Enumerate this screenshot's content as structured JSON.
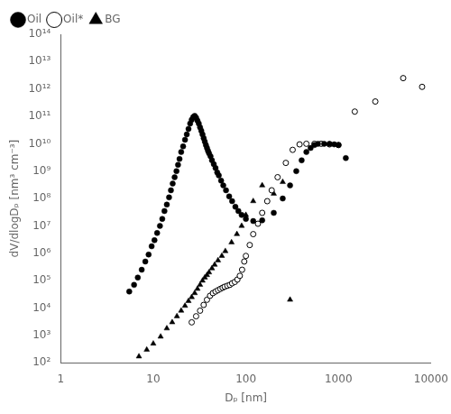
{
  "chart_data": {
    "type": "scatter",
    "xlabel": "Dₚ [nm]",
    "ylabel": "dV/dlogDₚ [nm³ cm⁻³]",
    "log": true,
    "grid": false,
    "legend": "upper left",
    "xlim": [
      1,
      10000
    ],
    "ylim": [
      100.0,
      100000000000000.0
    ],
    "xticks": [
      1,
      10,
      100,
      1000,
      10000
    ],
    "yticks": [
      {
        "value": 100.0,
        "label": "10²"
      },
      {
        "value": 1000.0,
        "label": "10³"
      },
      {
        "value": 10000.0,
        "label": "10⁴"
      },
      {
        "value": 100000.0,
        "label": "10⁵"
      },
      {
        "value": 1000000.0,
        "label": "10⁶"
      },
      {
        "value": 10000000.0,
        "label": "10⁷"
      },
      {
        "value": 100000000.0,
        "label": "10⁸"
      },
      {
        "value": 1000000000.0,
        "label": "10⁹"
      },
      {
        "value": 10000000000.0,
        "label": "10¹⁰"
      },
      {
        "value": 100000000000.0,
        "label": "10¹¹"
      },
      {
        "value": 1000000000000.0,
        "label": "10¹²"
      },
      {
        "value": 10000000000000.0,
        "label": "10¹³"
      },
      {
        "value": 100000000000000.0,
        "label": "10¹⁴"
      }
    ],
    "series": [
      {
        "name": "Oil",
        "color": "#000000",
        "marker": "circle",
        "x": [
          5.5,
          6.2,
          6.8,
          7.5,
          8.2,
          8.9,
          9.6,
          10.3,
          11.0,
          11.8,
          12.5,
          13.2,
          14.0,
          14.8,
          15.5,
          16.2,
          17.0,
          17.8,
          18.5,
          19.2,
          20.0,
          21.0,
          22.0,
          23.0,
          24.0,
          25.0,
          26.0,
          27.0,
          28.0,
          29.0,
          30.0,
          31.0,
          32.0,
          33.0,
          34.0,
          35.0,
          36.0,
          37.0,
          38.0,
          39.0,
          40.0,
          41.5,
          43.0,
          45.0,
          47.0,
          49.0,
          51.0,
          54.0,
          57.0,
          61.0,
          66.0,
          71.0,
          77.0,
          83.0,
          90.0,
          100.0,
          120.0,
          150.0,
          200.0,
          250.0,
          300.0,
          350.0,
          400.0,
          450.0,
          500.0,
          550.0,
          600.0,
          700.0,
          800.0,
          900.0,
          1000.0,
          1200.0
        ],
        "values": [
          40000.0,
          70000.0,
          130000.0,
          250000.0,
          500000.0,
          900000.0,
          1800000.0,
          3000000.0,
          5500000.0,
          10000000.0,
          18000000.0,
          35000000.0,
          60000000.0,
          110000000.0,
          200000000.0,
          350000000.0,
          600000000.0,
          1000000000.0,
          1700000000.0,
          2800000000.0,
          5000000000.0,
          8000000000.0,
          14000000000.0,
          22000000000.0,
          35000000000.0,
          55000000000.0,
          75000000000.0,
          95000000000.0,
          105000000000.0,
          90000000000.0,
          70000000000.0,
          55000000000.0,
          40000000000.0,
          30000000000.0,
          22000000000.0,
          16000000000.0,
          12000000000.0,
          9000000000.0,
          7000000000.0,
          5500000000.0,
          4500000000.0,
          3500000000.0,
          2500000000.0,
          1800000000.0,
          1300000000.0,
          900000000.0,
          700000000.0,
          450000000.0,
          300000000.0,
          200000000.0,
          120000000.0,
          80000000.0,
          50000000.0,
          35000000.0,
          25000000.0,
          18000000.0,
          15000000.0,
          16000000.0,
          30000000.0,
          100000000.0,
          300000000.0,
          1000000000.0,
          2500000000.0,
          5000000000.0,
          7000000000.0,
          9000000000.0,
          10000000000.0,
          10000000000.0,
          10000000000.0,
          9500000000.0,
          9000000000.0,
          3000000000.0
        ]
      },
      {
        "name": "Oil*",
        "color": "#000000",
        "marker": "open_circle",
        "x": [
          26.0,
          29.0,
          32.0,
          35.0,
          38.0,
          41.0,
          44.0,
          47.0,
          50.0,
          53.0,
          56.0,
          59.0,
          63.0,
          67.0,
          71.0,
          76.0,
          81.0,
          86.0,
          91.0,
          96.0,
          100.0,
          110.0,
          120.0,
          135.0,
          150.0,
          170.0,
          190.0,
          220.0,
          270.0,
          320.0,
          380.0,
          450.0,
          550.0,
          650.0,
          800.0,
          1000.0,
          1500.0,
          2500.0,
          5000.0,
          8000.0
        ],
        "values": [
          3000.0,
          5000.0,
          8000.0,
          13000.0,
          20000.0,
          28000.0,
          35000.0,
          40000.0,
          45000.0,
          50000.0,
          55000.0,
          60000.0,
          65000.0,
          70000.0,
          80000.0,
          90000.0,
          110000.0,
          150000.0,
          250000.0,
          500000.0,
          800000.0,
          2000000.0,
          5000000.0,
          12000000.0,
          30000000.0,
          80000000.0,
          200000000.0,
          600000000.0,
          2000000000.0,
          6000000000.0,
          9500000000.0,
          10000000000.0,
          10000000000.0,
          10000000000.0,
          9500000000.0,
          9000000000.0,
          150000000000.0,
          350000000000.0,
          2500000000000.0,
          1200000000000.0
        ]
      },
      {
        "name": "BG",
        "color": "#000000",
        "marker": "triangle",
        "x": [
          7.0,
          8.5,
          10.0,
          12.0,
          14.0,
          16.0,
          18.0,
          20.0,
          22.0,
          24.0,
          26.0,
          28.0,
          30.0,
          32.0,
          34.0,
          36.0,
          38.0,
          40.0,
          43.0,
          46.0,
          50.0,
          55.0,
          60.0,
          70.0,
          80.0,
          90.0,
          100.0,
          120.0,
          150.0,
          200.0,
          250.0,
          300.0
        ],
        "values": [
          170.0,
          300.0,
          500.0,
          900.0,
          1800.0,
          3000.0,
          5000.0,
          8000.0,
          12000.0,
          18000.0,
          25000.0,
          35000.0,
          50000.0,
          70000.0,
          100000.0,
          130000.0,
          160000.0,
          200000.0,
          280000.0,
          380000.0,
          550000.0,
          800000.0,
          1200000.0,
          2500000.0,
          5000000.0,
          10000000.0,
          25000000.0,
          80000000.0,
          300000000.0,
          150000000.0,
          400000000.0,
          20000.0
        ]
      }
    ]
  }
}
